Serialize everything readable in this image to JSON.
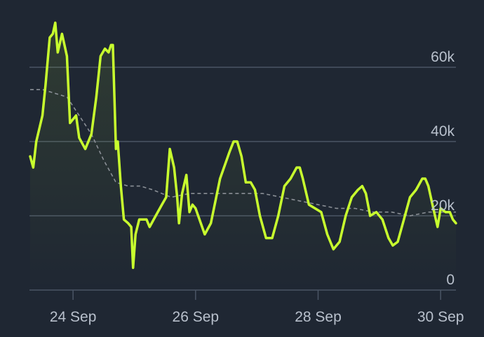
{
  "colors": {
    "background": "#1f2733",
    "grid": "#4a5565",
    "main_series": "#c8ff2e",
    "average_series": "#8a8f96",
    "label": "#b8c0cc"
  },
  "chart_data": {
    "type": "line",
    "title": "",
    "xlabel": "",
    "ylabel": "",
    "x_tick_labels": [
      "24 Sep",
      "26 Sep",
      "28 Sep",
      "30 Sep"
    ],
    "x_tick_days": [
      24,
      26,
      28,
      30
    ],
    "y_tick_labels": [
      "0",
      "20k",
      "40k",
      "60k"
    ],
    "y_ticks": [
      0,
      20000,
      40000,
      60000
    ],
    "xlim": [
      23.3,
      30.25
    ],
    "ylim": [
      0,
      80000
    ],
    "grid": true,
    "y_axis_side": "right",
    "series": [
      {
        "points": [
          [
            23.3,
            36000
          ],
          [
            23.35,
            33000
          ],
          [
            23.4,
            40000
          ],
          [
            23.5,
            47000
          ],
          [
            23.55,
            55000
          ],
          [
            23.62,
            68000
          ],
          [
            23.67,
            69000
          ],
          [
            23.71,
            72000
          ],
          [
            23.75,
            64000
          ],
          [
            23.82,
            69000
          ],
          [
            23.9,
            63000
          ],
          [
            23.95,
            45000
          ],
          [
            24.0,
            46000
          ],
          [
            24.05,
            47000
          ],
          [
            24.1,
            41000
          ],
          [
            24.2,
            38000
          ],
          [
            24.3,
            42000
          ],
          [
            24.38,
            52000
          ],
          [
            24.45,
            63000
          ],
          [
            24.52,
            65000
          ],
          [
            24.58,
            64000
          ],
          [
            24.62,
            66000
          ],
          [
            24.65,
            66000
          ],
          [
            24.7,
            38000
          ],
          [
            24.73,
            40000
          ],
          [
            24.78,
            28000
          ],
          [
            24.83,
            19000
          ],
          [
            24.9,
            18000
          ],
          [
            24.95,
            17000
          ],
          [
            24.98,
            6000
          ],
          [
            25.02,
            15000
          ],
          [
            25.08,
            19000
          ],
          [
            25.2,
            19000
          ],
          [
            25.25,
            17000
          ],
          [
            25.35,
            20000
          ],
          [
            25.45,
            23000
          ],
          [
            25.52,
            25000
          ],
          [
            25.58,
            38000
          ],
          [
            25.65,
            33000
          ],
          [
            25.7,
            25000
          ],
          [
            25.73,
            18000
          ],
          [
            25.78,
            26000
          ],
          [
            25.85,
            31000
          ],
          [
            25.9,
            21000
          ],
          [
            25.95,
            23000
          ],
          [
            26.0,
            22000
          ],
          [
            26.15,
            15000
          ],
          [
            26.25,
            18000
          ],
          [
            26.4,
            30000
          ],
          [
            26.55,
            37000
          ],
          [
            26.62,
            40000
          ],
          [
            26.68,
            40000
          ],
          [
            26.75,
            36000
          ],
          [
            26.82,
            29000
          ],
          [
            26.9,
            29000
          ],
          [
            26.97,
            27000
          ],
          [
            27.05,
            20000
          ],
          [
            27.15,
            14000
          ],
          [
            27.25,
            14000
          ],
          [
            27.35,
            20000
          ],
          [
            27.45,
            28000
          ],
          [
            27.55,
            30000
          ],
          [
            27.65,
            33000
          ],
          [
            27.7,
            33000
          ],
          [
            27.75,
            30000
          ],
          [
            27.85,
            23000
          ],
          [
            27.95,
            22000
          ],
          [
            28.05,
            21000
          ],
          [
            28.15,
            15000
          ],
          [
            28.25,
            11000
          ],
          [
            28.35,
            13000
          ],
          [
            28.45,
            20000
          ],
          [
            28.55,
            25000
          ],
          [
            28.65,
            27000
          ],
          [
            28.72,
            28000
          ],
          [
            28.78,
            26000
          ],
          [
            28.85,
            20000
          ],
          [
            28.95,
            21000
          ],
          [
            29.05,
            19000
          ],
          [
            29.15,
            14000
          ],
          [
            29.22,
            12000
          ],
          [
            29.3,
            13000
          ],
          [
            29.4,
            19000
          ],
          [
            29.5,
            25000
          ],
          [
            29.6,
            27000
          ],
          [
            29.7,
            30000
          ],
          [
            29.75,
            30000
          ],
          [
            29.8,
            28000
          ],
          [
            29.88,
            22000
          ],
          [
            29.95,
            17000
          ],
          [
            30.0,
            22000
          ],
          [
            30.08,
            21000
          ],
          [
            30.15,
            21000
          ],
          [
            30.2,
            19000
          ],
          [
            30.25,
            18000
          ]
        ]
      },
      {
        "dashed": true,
        "points": [
          [
            23.3,
            54000
          ],
          [
            23.5,
            54000
          ],
          [
            23.7,
            53000
          ],
          [
            23.9,
            52000
          ],
          [
            24.1,
            47000
          ],
          [
            24.3,
            42000
          ],
          [
            24.5,
            35000
          ],
          [
            24.7,
            29000
          ],
          [
            24.9,
            28000
          ],
          [
            25.1,
            28000
          ],
          [
            25.3,
            27000
          ],
          [
            25.6,
            25000
          ],
          [
            25.9,
            26000
          ],
          [
            26.2,
            26000
          ],
          [
            26.5,
            26000
          ],
          [
            26.8,
            26000
          ],
          [
            27.1,
            26000
          ],
          [
            27.4,
            25000
          ],
          [
            27.7,
            24000
          ],
          [
            28.0,
            23000
          ],
          [
            28.3,
            22000
          ],
          [
            28.6,
            22000
          ],
          [
            28.9,
            21000
          ],
          [
            29.2,
            21000
          ],
          [
            29.5,
            20000
          ],
          [
            29.8,
            21000
          ],
          [
            30.1,
            21000
          ],
          [
            30.25,
            21000
          ]
        ]
      }
    ]
  }
}
